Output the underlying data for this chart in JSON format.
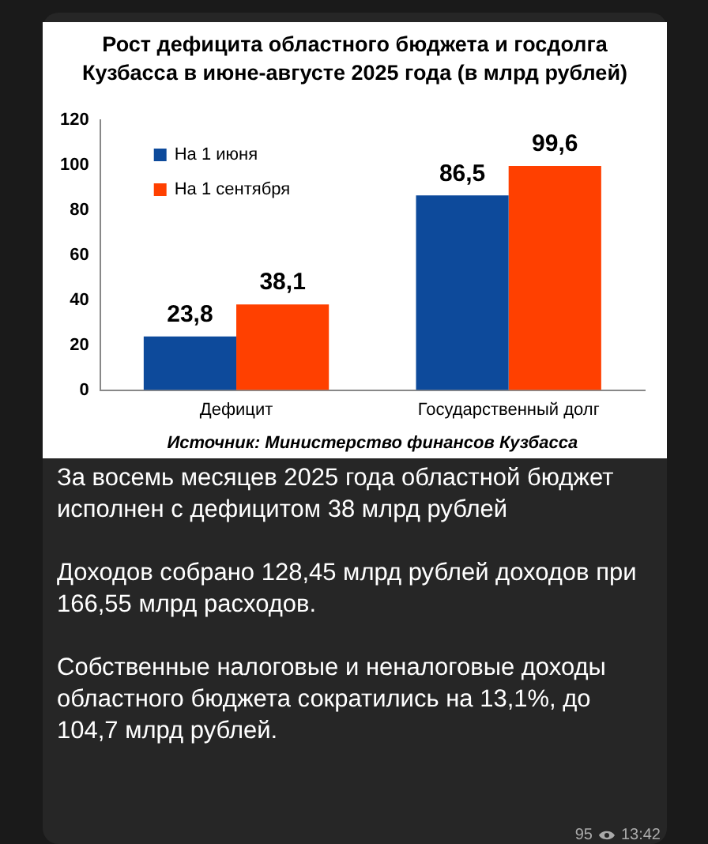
{
  "chart_data": {
    "type": "bar",
    "title": "Рост дефицита областного бюджета и госдолга Кузбасса в июне-августе 2025 года (в млрд рублей)",
    "categories": [
      "Дефицит",
      "Государственный долг"
    ],
    "series": [
      {
        "name": "На 1 июня",
        "color": "#0d4a9b",
        "values": [
          23.8,
          86.5
        ],
        "value_labels": [
          "23,8",
          "86,5"
        ]
      },
      {
        "name": "На 1 сентября",
        "color": "#ff4000",
        "values": [
          38.1,
          99.6
        ],
        "value_labels": [
          "38,1",
          "99,6"
        ]
      }
    ],
    "ylim": [
      0,
      120
    ],
    "yticks": [
      0,
      20,
      40,
      60,
      80,
      100,
      120
    ],
    "grid": false,
    "legend": "top left",
    "annotations": [
      "Источник: Министерство финансов Кузбасса",
      "За восемь месяцев 2025 года областной бюджет исполнен с дефицитом 38 млрд рублей",
      "Доходов собрано 128,45 млрд рублей доходов при 166,55 млрд расходов.",
      "Собственные налоговые и неналоговые доходы областного бюджета сократились на 13,1%, до 104,7 млрд рублей.",
      "95",
      "13:42"
    ]
  }
}
